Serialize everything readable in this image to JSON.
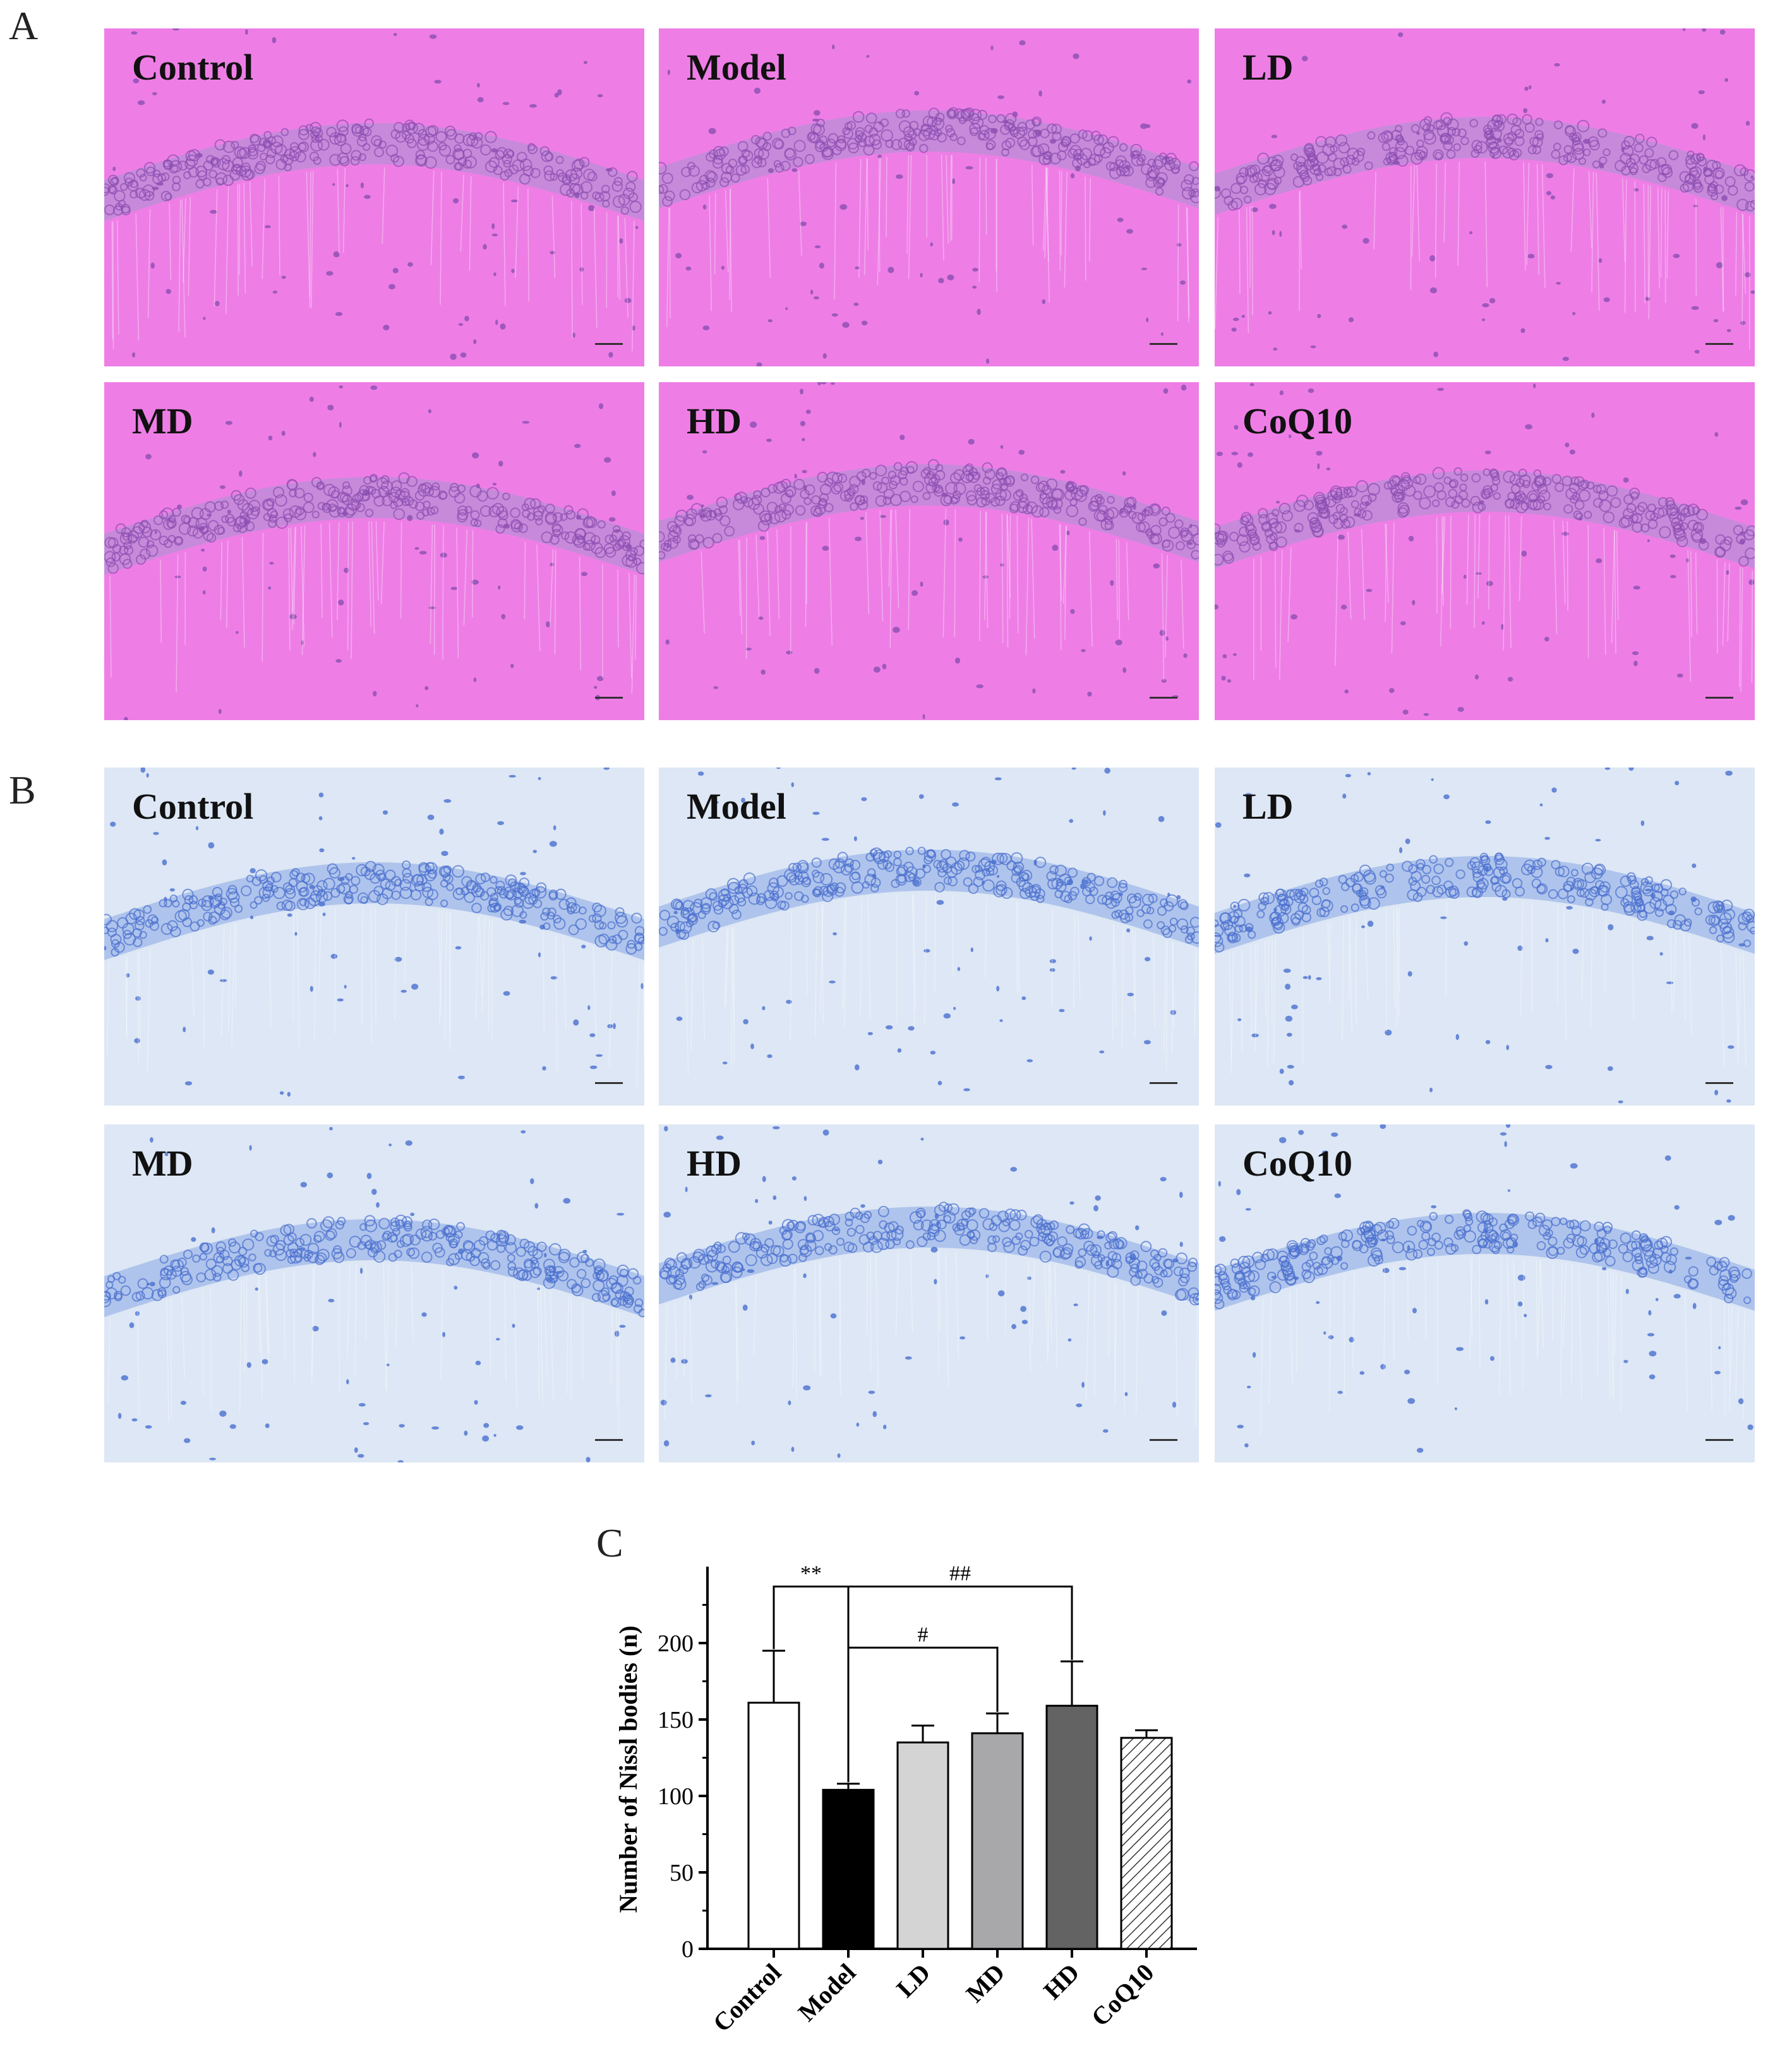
{
  "panels": {
    "a": {
      "letter": "A",
      "labels": [
        "Control",
        "Model",
        "LD",
        "MD",
        "HD",
        "CoQ10"
      ]
    },
    "b": {
      "letter": "B",
      "labels": [
        "Control",
        "Model",
        "LD",
        "MD",
        "HD",
        "CoQ10"
      ]
    },
    "c": {
      "letter": "C"
    }
  },
  "colors": {
    "he_background": "#ee7ee6",
    "he_neuron_band": "#b98fd6",
    "he_dots": "#8a4fb0",
    "nissl_background": "#dde7f5",
    "nissl_neuron_band": "#9fb8e8",
    "nissl_dots": "#4a6fcf"
  },
  "chart_data": {
    "type": "bar",
    "categories": [
      "Control",
      "Model",
      "LD",
      "MD",
      "HD",
      "CoQ10"
    ],
    "values": [
      161,
      104,
      135,
      141,
      159,
      138
    ],
    "errors": [
      34,
      4,
      11,
      13,
      29,
      5
    ],
    "fills": [
      "#ffffff",
      "#000000",
      "#d4d4d4",
      "#a8a8aa",
      "#636363",
      "hatched"
    ],
    "ylabel": "Number of Nissl bodies (n)",
    "ylim": [
      0,
      250
    ],
    "yticks": [
      0,
      50,
      100,
      150,
      200
    ],
    "significance": [
      {
        "from": "Control",
        "to": "Model",
        "label": "**"
      },
      {
        "from": "Model",
        "to": "MD",
        "label": "#"
      },
      {
        "from": "Model",
        "to": "HD",
        "label": "##"
      }
    ]
  }
}
